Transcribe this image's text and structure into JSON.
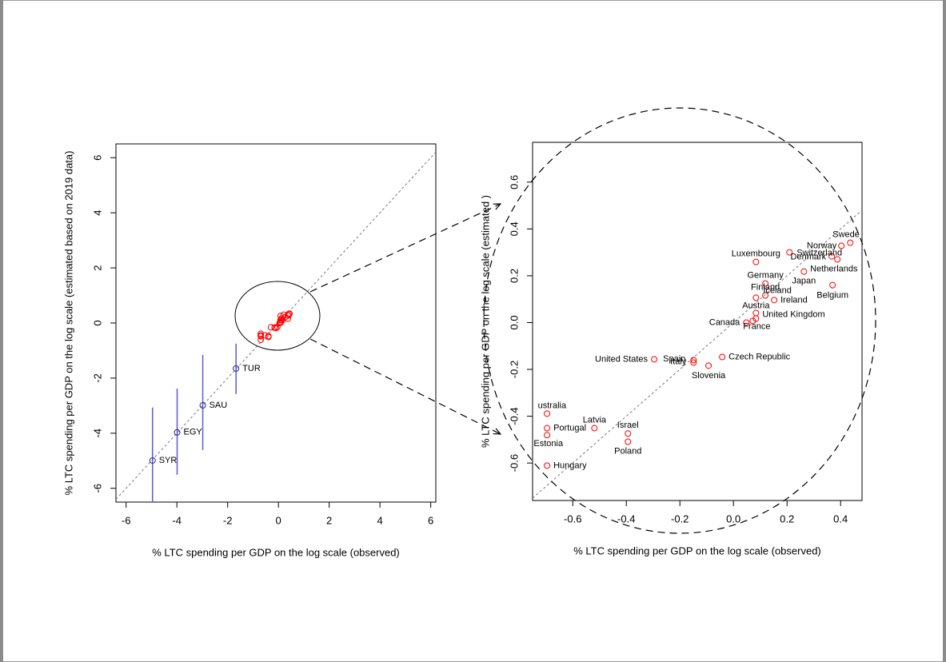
{
  "chart_data": [
    {
      "type": "scatter",
      "x_label": "% LTC spending per GDP on the log scale (observed)",
      "y_label": "% LTC spending per GDP on the log scale (estimated based on 2019 data)",
      "xlim": [
        -6.4,
        6.2
      ],
      "ylim": [
        -6.5,
        6.5
      ],
      "xticks": [
        -6,
        -4,
        -2,
        0,
        2,
        4,
        6
      ],
      "yticks": [
        -6,
        -4,
        -2,
        0,
        2,
        4,
        6
      ],
      "labels": [
        "SYR",
        "EGY",
        "SAU",
        "TUR"
      ],
      "x": [
        -4.96,
        -3.99,
        -2.98,
        -1.67
      ],
      "y": [
        -4.99,
        -3.97,
        -2.99,
        -1.65
      ],
      "error_low": [
        -6.9,
        -5.51,
        -4.61,
        -2.58
      ],
      "error_high": [
        -3.07,
        -2.38,
        -1.16,
        -0.75
      ],
      "color": "#2b2b7a",
      "error_color": "#5a5ae0"
    },
    {
      "type": "scatter",
      "x_label": "% LTC spending per GDP on the log scale (observed)",
      "y_label": "% LTC spending per GDP on the log scale (estimated )",
      "xlim": [
        -0.75,
        0.48
      ],
      "ylim": [
        -0.76,
        0.77
      ],
      "xticks": [
        -0.6,
        -0.4,
        -0.2,
        {
          "value": 0,
          "label": "0.0"
        },
        0.2,
        0.4
      ],
      "yticks": [
        -0.6,
        -0.4,
        -0.2,
        {
          "value": 0,
          "label": "0.0"
        },
        0.2,
        0.4,
        0.6
      ],
      "labels": [
        "Swede",
        "Norway",
        "Switzerland",
        "Denmark",
        "Netherlands",
        "Luxembourg",
        "Japan",
        "Belgium",
        "Germany",
        "Finland",
        "Iceland",
        "Ireland",
        "Austria",
        "United Kingdom",
        "Canada",
        "France",
        "Czech Republic",
        "Slovenia",
        "Spain",
        "Italy",
        "United States",
        "ustralia",
        "Portugal",
        "Estonia",
        "Hungary",
        "Latvia",
        "Israel",
        "Poland"
      ],
      "x": [
        0.436,
        0.403,
        0.209,
        0.367,
        0.388,
        0.084,
        0.263,
        0.37,
        0.119,
        0.119,
        0.084,
        0.152,
        0.084,
        0.084,
        0.048,
        0.072,
        -0.042,
        -0.093,
        -0.149,
        -0.149,
        -0.296,
        -0.696,
        -0.696,
        -0.696,
        -0.696,
        -0.519,
        -0.394,
        -0.394
      ],
      "y": [
        0.341,
        0.328,
        0.3,
        0.283,
        0.27,
        0.259,
        0.218,
        0.16,
        0.167,
        0.116,
        0.106,
        0.096,
        0.041,
        0.017,
        0.0,
        0.007,
        -0.147,
        -0.184,
        -0.16,
        -0.171,
        -0.157,
        -0.389,
        -0.451,
        -0.481,
        -0.611,
        -0.451,
        -0.474,
        -0.509
      ],
      "color": "#ff0000"
    }
  ]
}
